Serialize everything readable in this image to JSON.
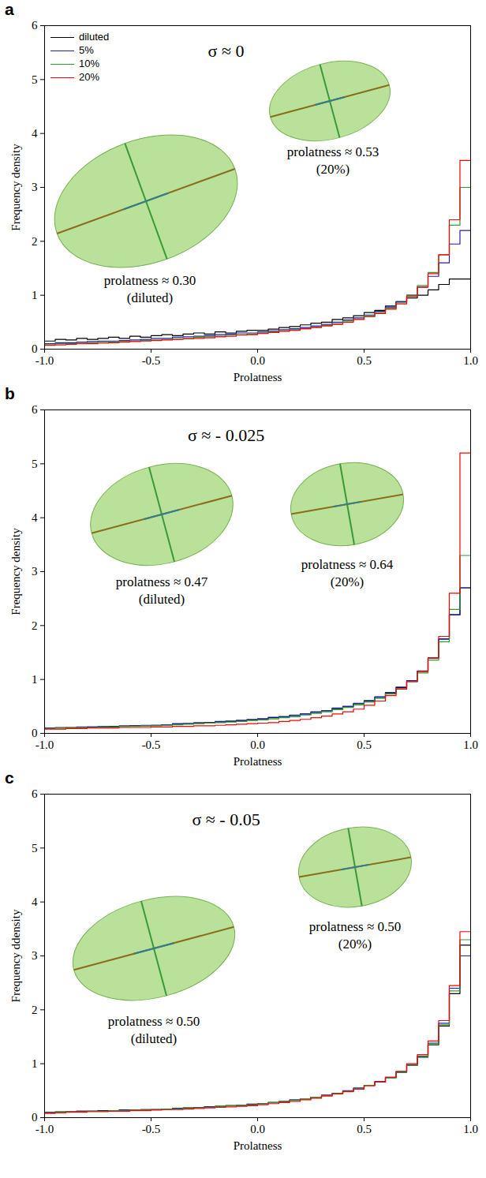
{
  "chart_data": [
    {
      "type": "histogram",
      "panel": "a",
      "title": "σ ≈ 0",
      "x_label": "Prolatness",
      "y_label": "Frequency density",
      "xlim": [
        -1,
        1
      ],
      "ylim": [
        0,
        6
      ],
      "xticks": [
        {
          "value": -1,
          "label": "-1.0"
        },
        {
          "value": -0.5,
          "label": "-0.5"
        },
        {
          "value": 0,
          "label": "0.0"
        },
        {
          "value": 0.5,
          "label": "0.5"
        },
        {
          "value": 1,
          "label": "1.0"
        }
      ],
      "yticks": [
        0,
        1,
        2,
        3,
        4,
        5,
        6
      ],
      "legend": "upper left",
      "bins": [
        -1,
        -0.95,
        -0.9,
        -0.85,
        -0.8,
        -0.75,
        -0.7,
        -0.65,
        -0.6,
        -0.55,
        -0.5,
        -0.45,
        -0.4,
        -0.35,
        -0.3,
        -0.25,
        -0.2,
        -0.15,
        -0.1,
        -0.05,
        0,
        0.05,
        0.1,
        0.15,
        0.2,
        0.25,
        0.3,
        0.35,
        0.4,
        0.45,
        0.5,
        0.55,
        0.6,
        0.65,
        0.7,
        0.75,
        0.8,
        0.85,
        0.9,
        0.95,
        1
      ],
      "series": [
        {
          "name": "diluted",
          "color": "black",
          "values": [
            0.15,
            0.18,
            0.17,
            0.2,
            0.18,
            0.2,
            0.22,
            0.2,
            0.24,
            0.22,
            0.25,
            0.27,
            0.25,
            0.28,
            0.3,
            0.28,
            0.32,
            0.3,
            0.33,
            0.35,
            0.35,
            0.37,
            0.4,
            0.42,
            0.45,
            0.48,
            0.5,
            0.55,
            0.58,
            0.62,
            0.68,
            0.72,
            0.8,
            0.88,
            0.95,
            1.0,
            1.1,
            1.2,
            1.3,
            1.3
          ]
        },
        {
          "name": "5%",
          "color": "#1f1fb4",
          "values": [
            0.1,
            0.12,
            0.12,
            0.13,
            0.14,
            0.15,
            0.15,
            0.16,
            0.17,
            0.18,
            0.2,
            0.2,
            0.22,
            0.23,
            0.24,
            0.25,
            0.27,
            0.28,
            0.3,
            0.3,
            0.32,
            0.34,
            0.36,
            0.38,
            0.4,
            0.43,
            0.46,
            0.5,
            0.54,
            0.58,
            0.63,
            0.7,
            0.78,
            0.88,
            1.0,
            1.15,
            1.35,
            1.6,
            1.95,
            2.2
          ]
        },
        {
          "name": "10%",
          "color": "#2ca02c",
          "values": [
            0.08,
            0.1,
            0.1,
            0.11,
            0.12,
            0.13,
            0.13,
            0.14,
            0.15,
            0.16,
            0.17,
            0.18,
            0.19,
            0.2,
            0.22,
            0.23,
            0.24,
            0.26,
            0.27,
            0.28,
            0.3,
            0.32,
            0.34,
            0.36,
            0.38,
            0.41,
            0.44,
            0.47,
            0.52,
            0.56,
            0.62,
            0.68,
            0.76,
            0.86,
            1.0,
            1.18,
            1.42,
            1.75,
            2.3,
            3.0
          ]
        },
        {
          "name": "20%",
          "color": "red",
          "values": [
            0.07,
            0.08,
            0.09,
            0.1,
            0.1,
            0.11,
            0.12,
            0.13,
            0.14,
            0.15,
            0.16,
            0.17,
            0.18,
            0.19,
            0.2,
            0.21,
            0.23,
            0.24,
            0.26,
            0.27,
            0.29,
            0.31,
            0.33,
            0.35,
            0.38,
            0.4,
            0.43,
            0.46,
            0.5,
            0.55,
            0.6,
            0.66,
            0.74,
            0.84,
            0.98,
            1.15,
            1.4,
            1.75,
            2.4,
            3.5
          ]
        }
      ],
      "annotations": [
        {
          "text": "prolatness ≈ 0.30",
          "note": "(diluted)"
        },
        {
          "text": "prolatness ≈ 0.53",
          "note": "(20%)"
        }
      ]
    },
    {
      "type": "histogram",
      "panel": "b",
      "title": "σ ≈ - 0.025",
      "x_label": "Prolatness",
      "y_label": "Frequency density",
      "xlim": [
        -1,
        1
      ],
      "ylim": [
        0,
        6
      ],
      "xticks": [
        {
          "value": -1,
          "label": "-1.0"
        },
        {
          "value": -0.5,
          "label": "-0.5"
        },
        {
          "value": 0,
          "label": "0.0"
        },
        {
          "value": 0.5,
          "label": "0.5"
        },
        {
          "value": 1,
          "label": "1.0"
        }
      ],
      "yticks": [
        0,
        1,
        2,
        3,
        4,
        5,
        6
      ],
      "bins": [
        -1,
        -0.95,
        -0.9,
        -0.85,
        -0.8,
        -0.75,
        -0.7,
        -0.65,
        -0.6,
        -0.55,
        -0.5,
        -0.45,
        -0.4,
        -0.35,
        -0.3,
        -0.25,
        -0.2,
        -0.15,
        -0.1,
        -0.05,
        0,
        0.05,
        0.1,
        0.15,
        0.2,
        0.25,
        0.3,
        0.35,
        0.4,
        0.45,
        0.5,
        0.55,
        0.6,
        0.65,
        0.7,
        0.75,
        0.8,
        0.85,
        0.9,
        0.95,
        1
      ],
      "series": [
        {
          "name": "diluted",
          "color": "black",
          "values": [
            0.1,
            0.1,
            0.11,
            0.11,
            0.12,
            0.12,
            0.13,
            0.13,
            0.14,
            0.14,
            0.15,
            0.16,
            0.17,
            0.18,
            0.19,
            0.2,
            0.21,
            0.22,
            0.24,
            0.25,
            0.27,
            0.29,
            0.31,
            0.33,
            0.36,
            0.39,
            0.42,
            0.46,
            0.5,
            0.55,
            0.6,
            0.67,
            0.75,
            0.85,
            0.98,
            1.15,
            1.4,
            1.75,
            2.2,
            2.7
          ]
        },
        {
          "name": "5%",
          "color": "#1f1fb4",
          "values": [
            0.1,
            0.11,
            0.1,
            0.12,
            0.12,
            0.13,
            0.12,
            0.14,
            0.14,
            0.15,
            0.15,
            0.16,
            0.18,
            0.18,
            0.2,
            0.2,
            0.22,
            0.23,
            0.24,
            0.26,
            0.27,
            0.3,
            0.31,
            0.34,
            0.36,
            0.4,
            0.42,
            0.47,
            0.5,
            0.56,
            0.61,
            0.68,
            0.76,
            0.86,
            0.98,
            1.16,
            1.4,
            1.75,
            2.2,
            2.7
          ]
        },
        {
          "name": "10%",
          "color": "#2ca02c",
          "values": [
            0.09,
            0.1,
            0.1,
            0.11,
            0.11,
            0.12,
            0.12,
            0.13,
            0.13,
            0.14,
            0.14,
            0.15,
            0.16,
            0.17,
            0.18,
            0.19,
            0.2,
            0.21,
            0.22,
            0.24,
            0.25,
            0.27,
            0.29,
            0.31,
            0.34,
            0.37,
            0.4,
            0.44,
            0.48,
            0.53,
            0.58,
            0.65,
            0.73,
            0.83,
            0.96,
            1.12,
            1.36,
            1.7,
            2.3,
            3.3
          ]
        },
        {
          "name": "20%",
          "color": "red",
          "values": [
            0.08,
            0.08,
            0.09,
            0.09,
            0.1,
            0.1,
            0.1,
            0.11,
            0.11,
            0.11,
            0.12,
            0.12,
            0.13,
            0.13,
            0.14,
            0.14,
            0.15,
            0.16,
            0.17,
            0.18,
            0.19,
            0.2,
            0.22,
            0.24,
            0.26,
            0.29,
            0.32,
            0.36,
            0.4,
            0.45,
            0.52,
            0.6,
            0.7,
            0.82,
            0.96,
            1.15,
            1.4,
            1.8,
            2.6,
            5.2
          ]
        }
      ],
      "annotations": [
        {
          "text": "prolatness ≈ 0.47",
          "note": "(diluted)"
        },
        {
          "text": "prolatness ≈ 0.64",
          "note": "(20%)"
        }
      ]
    },
    {
      "type": "histogram",
      "panel": "c",
      "title": "σ ≈ - 0.05",
      "x_label": "Prolatness",
      "y_label": "Frequency ddensity",
      "xlim": [
        -1,
        1
      ],
      "ylim": [
        0,
        6
      ],
      "xticks": [
        {
          "value": -1,
          "label": "-1.0"
        },
        {
          "value": -0.5,
          "label": "-0.5"
        },
        {
          "value": 0,
          "label": "0.0"
        },
        {
          "value": 0.5,
          "label": "0.5"
        },
        {
          "value": 1,
          "label": "1.0"
        }
      ],
      "yticks": [
        0,
        1,
        2,
        3,
        4,
        5,
        6
      ],
      "bins": [
        -1,
        -0.95,
        -0.9,
        -0.85,
        -0.8,
        -0.75,
        -0.7,
        -0.65,
        -0.6,
        -0.55,
        -0.5,
        -0.45,
        -0.4,
        -0.35,
        -0.3,
        -0.25,
        -0.2,
        -0.15,
        -0.1,
        -0.05,
        0,
        0.05,
        0.1,
        0.15,
        0.2,
        0.25,
        0.3,
        0.35,
        0.4,
        0.45,
        0.5,
        0.55,
        0.6,
        0.65,
        0.7,
        0.75,
        0.8,
        0.85,
        0.9,
        0.95,
        1
      ],
      "series": [
        {
          "name": "diluted",
          "color": "black",
          "values": [
            0.1,
            0.11,
            0.11,
            0.12,
            0.12,
            0.13,
            0.13,
            0.14,
            0.14,
            0.15,
            0.15,
            0.16,
            0.17,
            0.18,
            0.19,
            0.2,
            0.21,
            0.22,
            0.23,
            0.25,
            0.26,
            0.28,
            0.3,
            0.32,
            0.35,
            0.38,
            0.41,
            0.45,
            0.49,
            0.54,
            0.6,
            0.66,
            0.74,
            0.84,
            0.97,
            1.12,
            1.35,
            1.7,
            2.3,
            3.2
          ]
        },
        {
          "name": "5%",
          "color": "#1f1fb4",
          "values": [
            0.1,
            0.1,
            0.11,
            0.12,
            0.12,
            0.12,
            0.13,
            0.14,
            0.14,
            0.14,
            0.15,
            0.16,
            0.17,
            0.17,
            0.19,
            0.2,
            0.2,
            0.22,
            0.23,
            0.24,
            0.26,
            0.28,
            0.3,
            0.33,
            0.35,
            0.38,
            0.42,
            0.45,
            0.5,
            0.55,
            0.6,
            0.67,
            0.75,
            0.85,
            0.98,
            1.14,
            1.38,
            1.75,
            2.4,
            3.0
          ]
        },
        {
          "name": "10%",
          "color": "#2ca02c",
          "values": [
            0.09,
            0.1,
            0.11,
            0.11,
            0.12,
            0.12,
            0.13,
            0.13,
            0.14,
            0.15,
            0.15,
            0.16,
            0.16,
            0.18,
            0.18,
            0.19,
            0.21,
            0.22,
            0.23,
            0.24,
            0.26,
            0.28,
            0.3,
            0.32,
            0.35,
            0.38,
            0.41,
            0.45,
            0.49,
            0.54,
            0.6,
            0.66,
            0.74,
            0.84,
            0.97,
            1.13,
            1.37,
            1.72,
            2.35,
            3.3
          ]
        },
        {
          "name": "20%",
          "color": "red",
          "values": [
            0.08,
            0.09,
            0.1,
            0.1,
            0.11,
            0.11,
            0.12,
            0.12,
            0.13,
            0.13,
            0.14,
            0.15,
            0.15,
            0.16,
            0.17,
            0.18,
            0.19,
            0.2,
            0.21,
            0.22,
            0.24,
            0.26,
            0.28,
            0.3,
            0.33,
            0.36,
            0.4,
            0.44,
            0.48,
            0.53,
            0.59,
            0.66,
            0.75,
            0.86,
            1.0,
            1.17,
            1.42,
            1.8,
            2.45,
            3.45
          ]
        }
      ],
      "annotations": [
        {
          "text": "prolatness ≈ 0.50",
          "note": "(diluted)"
        },
        {
          "text": "prolatness ≈ 0.50",
          "note": "(20%)"
        }
      ]
    }
  ]
}
